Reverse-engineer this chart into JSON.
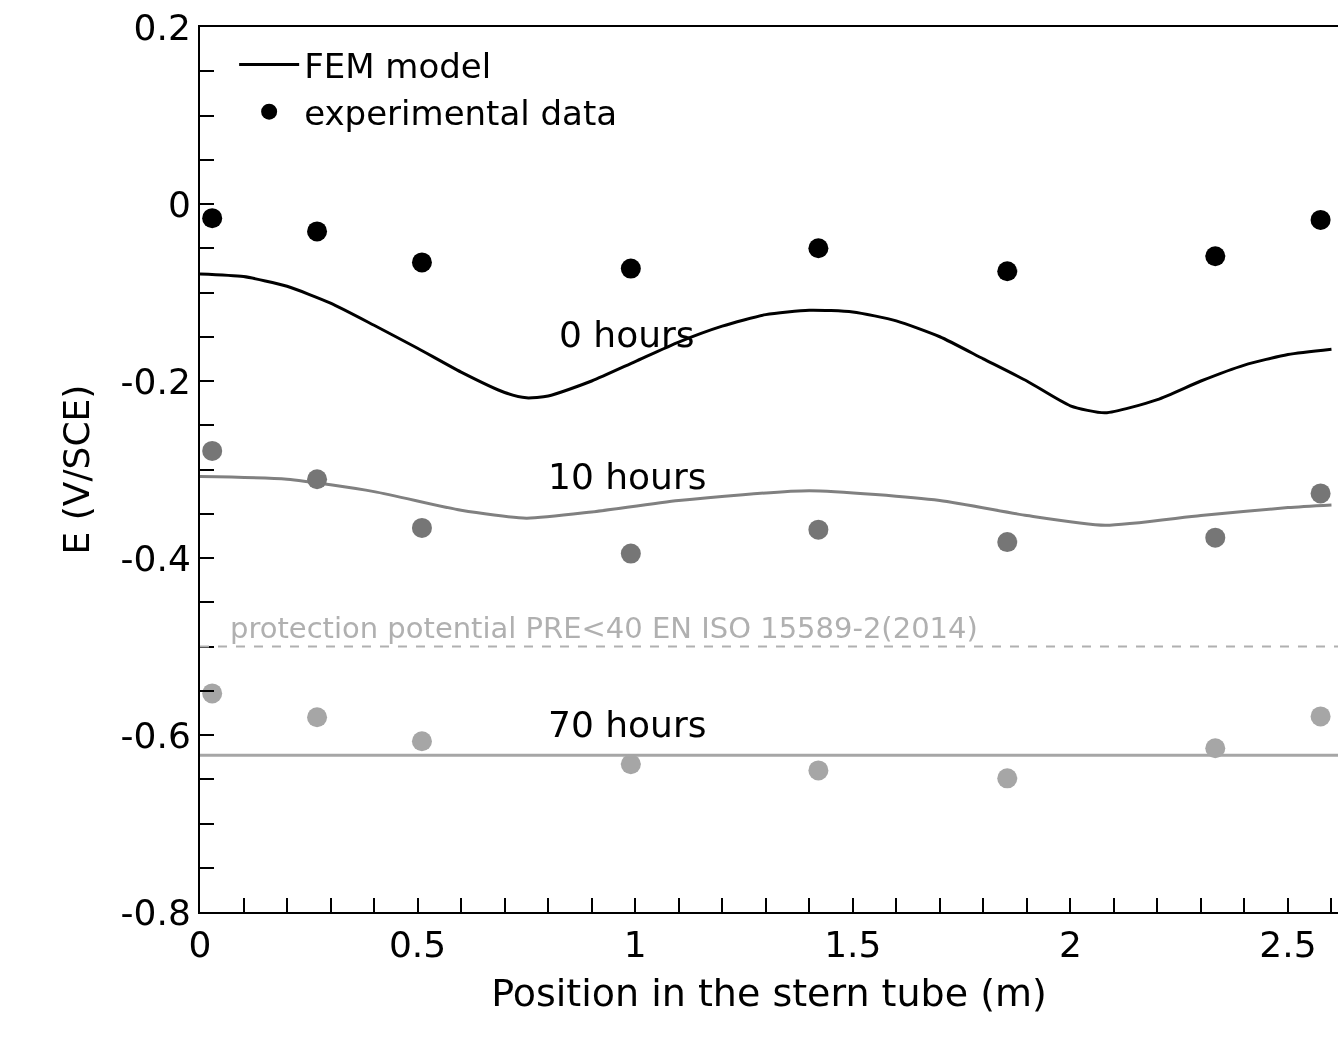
{
  "chart_data": {
    "type": "line",
    "xlabel": "Position in the stern tube (m)",
    "ylabel": "E (V/SCE)",
    "xlim": [
      0,
      2.615
    ],
    "ylim": [
      -0.8,
      0.2
    ],
    "xticks": [
      0,
      {
        "value": 0.1,
        "label": null
      },
      {
        "value": 0.2,
        "label": null
      },
      {
        "value": 0.3,
        "label": null
      },
      {
        "value": 0.4,
        "label": null
      },
      0.5,
      {
        "value": 0.6,
        "label": null
      },
      {
        "value": 0.7,
        "label": null
      },
      {
        "value": 0.8,
        "label": null
      },
      {
        "value": 0.9,
        "label": null
      },
      1,
      {
        "value": 1.1,
        "label": null
      },
      {
        "value": 1.2,
        "label": null
      },
      {
        "value": 1.3,
        "label": null
      },
      {
        "value": 1.4,
        "label": null
      },
      1.5,
      {
        "value": 1.6,
        "label": null
      },
      {
        "value": 1.7,
        "label": null
      },
      {
        "value": 1.8,
        "label": null
      },
      {
        "value": 1.9,
        "label": null
      },
      2,
      {
        "value": 2.1,
        "label": null
      },
      {
        "value": 2.2,
        "label": null
      },
      {
        "value": 2.3,
        "label": null
      },
      {
        "value": 2.4,
        "label": null
      },
      2.5,
      {
        "value": 2.6,
        "label": null
      }
    ],
    "yticks": [
      -0.8,
      {
        "value": -0.75,
        "label": null
      },
      {
        "value": -0.7,
        "label": null
      },
      {
        "value": -0.65,
        "label": null
      },
      -0.6,
      {
        "value": -0.55,
        "label": null
      },
      {
        "value": -0.5,
        "label": null
      },
      {
        "value": -0.45,
        "label": null
      },
      -0.4,
      {
        "value": -0.35,
        "label": null
      },
      {
        "value": -0.3,
        "label": null
      },
      {
        "value": -0.25,
        "label": null
      },
      -0.2,
      {
        "value": -0.15,
        "label": null
      },
      {
        "value": -0.1,
        "label": null
      },
      {
        "value": -0.05,
        "label": null
      },
      0,
      {
        "value": 0.05,
        "label": null
      },
      {
        "value": 0.1,
        "label": null
      },
      {
        "value": 0.15,
        "label": null
      },
      0.2
    ],
    "legend": "top left",
    "series": [
      {
        "name": "FEM model",
        "color": "#000000",
        "line_style": "solid",
        "marker": "none",
        "x": [
          0,
          0.1,
          0.2,
          0.3,
          0.4,
          0.5,
          0.6,
          0.7,
          0.75,
          0.8,
          0.9,
          1.0,
          1.1,
          1.2,
          1.3,
          1.4,
          1.5,
          1.6,
          1.7,
          1.8,
          1.9,
          2.0,
          2.08,
          2.2,
          2.3,
          2.4,
          2.5,
          2.6
        ],
        "values": [
          -0.079,
          -0.082,
          -0.093,
          -0.112,
          -0.137,
          -0.163,
          -0.19,
          -0.213,
          -0.219,
          -0.217,
          -0.2,
          -0.178,
          -0.156,
          -0.138,
          -0.125,
          -0.12,
          -0.122,
          -0.132,
          -0.15,
          -0.175,
          -0.2,
          -0.228,
          -0.236,
          -0.221,
          -0.2,
          -0.182,
          -0.17,
          -0.164
        ]
      },
      {
        "name": "experimental data",
        "type": "scatter",
        "color": "#000000",
        "marker": "circle",
        "x": [
          0.028,
          0.269,
          0.51,
          0.99,
          1.421,
          1.855,
          2.333,
          2.575
        ],
        "values": [
          -0.016,
          -0.031,
          -0.066,
          -0.073,
          -0.05,
          -0.076,
          -0.059,
          -0.018
        ]
      },
      {
        "color": "#808080",
        "line_style": "solid",
        "marker": "none",
        "x": [
          0,
          0.2,
          0.4,
          0.6,
          0.75,
          0.9,
          1.1,
          1.4,
          1.7,
          1.9,
          2.08,
          2.3,
          2.5,
          2.6
        ],
        "values": [
          -0.308,
          -0.311,
          -0.325,
          -0.346,
          -0.355,
          -0.348,
          -0.335,
          -0.324,
          -0.335,
          -0.352,
          -0.363,
          -0.352,
          -0.343,
          -0.34
        ]
      },
      {
        "type": "scatter",
        "color": "#767676",
        "marker": "circle",
        "x": [
          0.028,
          0.269,
          0.51,
          0.99,
          1.421,
          1.855,
          2.333,
          2.575
        ],
        "values": [
          -0.279,
          -0.311,
          -0.366,
          -0.395,
          -0.368,
          -0.382,
          -0.377,
          -0.327
        ]
      },
      {
        "color": "#a6a6a6",
        "line_style": "solid",
        "marker": "none",
        "x": [
          0,
          2.615
        ],
        "values": [
          -0.623,
          -0.623
        ]
      },
      {
        "type": "scatter",
        "color": "#a6a6a6",
        "marker": "circle",
        "x": [
          0.028,
          0.269,
          0.51,
          0.99,
          1.421,
          1.855,
          2.333,
          2.575
        ],
        "values": [
          -0.553,
          -0.58,
          -0.607,
          -0.633,
          -0.64,
          -0.649,
          -0.615,
          -0.579
        ]
      }
    ],
    "ref_lines": [
      {
        "axis": "y",
        "value": -0.5,
        "label": "protection potential PRE<40 EN ISO 15589-2(2014)",
        "color": "#b0b0b0",
        "line_style": "dashed"
      }
    ],
    "annotations": [
      "0 hours",
      "10 hours",
      "70 hours"
    ]
  }
}
